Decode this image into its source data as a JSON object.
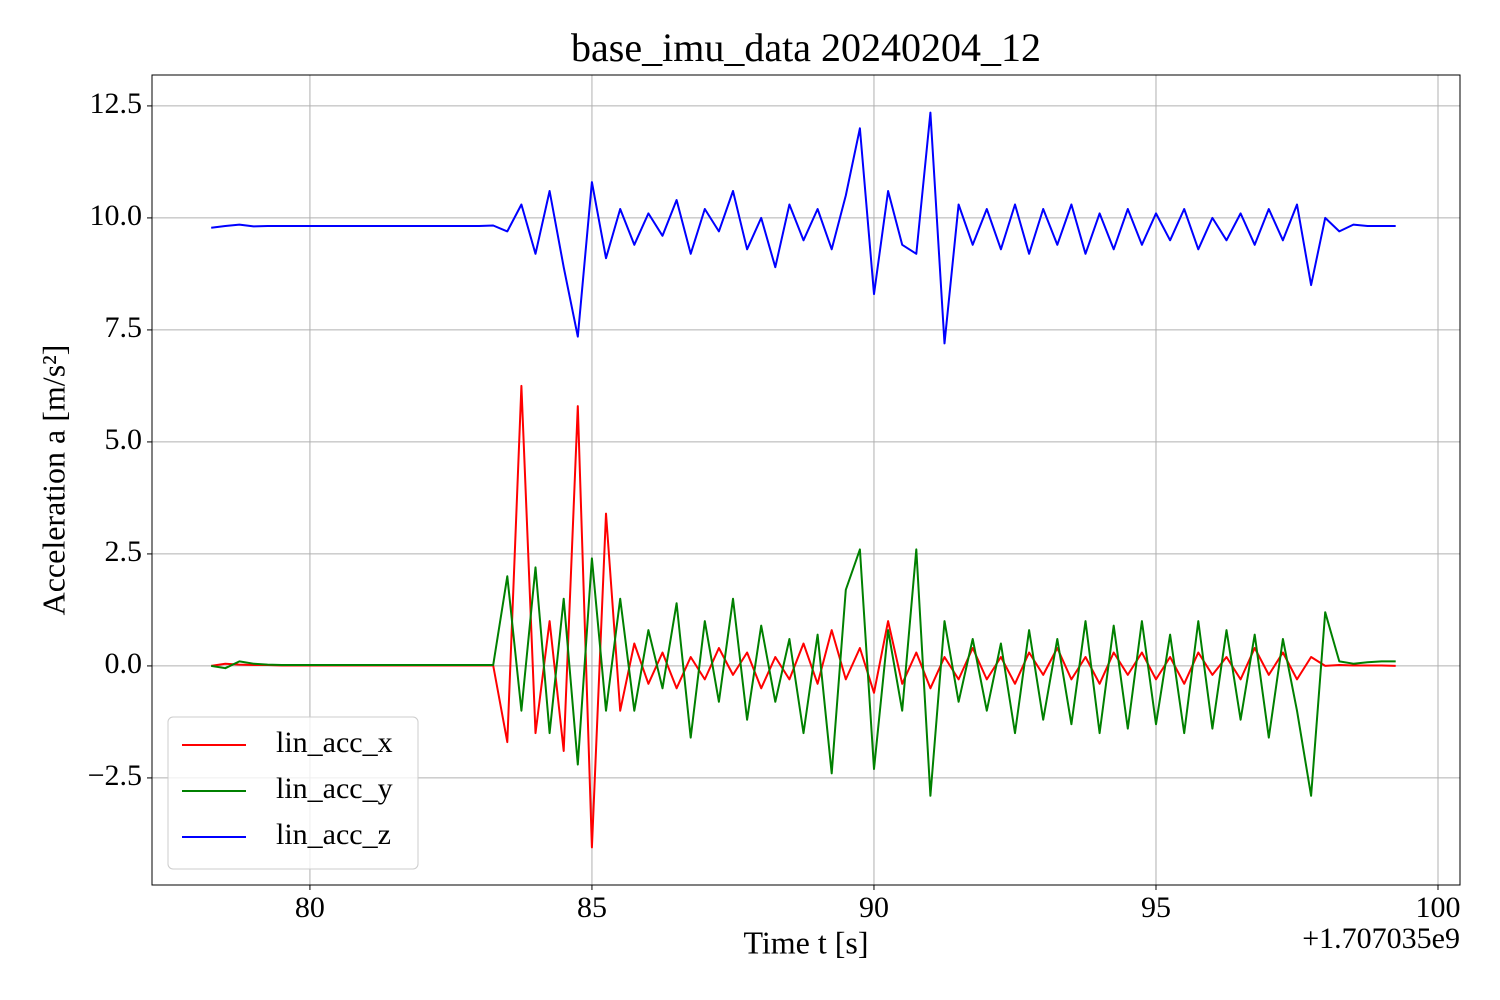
{
  "chart_data": {
    "type": "line",
    "title": "base_imu_data 20240204_12",
    "xlabel": "Time t [s]",
    "ylabel": "Acceleration a [m/s²]",
    "x_offset_label": "+1.707035e9",
    "legend": "lower left",
    "grid": true,
    "xlim": [
      77.2,
      100.39
    ],
    "ylim": [
      -4.89,
      13.19
    ],
    "xticks": [
      80,
      85,
      90,
      95,
      100
    ],
    "yticks": [
      {
        "value": -2.5,
        "label": "−2.5"
      },
      {
        "value": 0,
        "label": "0.0"
      },
      2.5,
      {
        "value": 5,
        "label": "5.0"
      },
      7.5,
      {
        "value": 10,
        "label": "10.0"
      },
      12.5
    ],
    "x": [
      78.25,
      78.5,
      78.75,
      79,
      79.25,
      79.5,
      79.75,
      80,
      80.25,
      80.5,
      80.75,
      81,
      81.25,
      81.5,
      81.75,
      82,
      82.25,
      82.5,
      82.75,
      83,
      83.25,
      83.5,
      83.75,
      84,
      84.25,
      84.5,
      84.75,
      85,
      85.25,
      85.5,
      85.75,
      86,
      86.25,
      86.5,
      86.75,
      87,
      87.25,
      87.5,
      87.75,
      88,
      88.25,
      88.5,
      88.75,
      89,
      89.25,
      89.5,
      89.75,
      90,
      90.25,
      90.5,
      90.75,
      91,
      91.25,
      91.5,
      91.75,
      92,
      92.25,
      92.5,
      92.75,
      93,
      93.25,
      93.5,
      93.75,
      94,
      94.25,
      94.5,
      94.75,
      95,
      95.25,
      95.5,
      95.75,
      96,
      96.25,
      96.5,
      96.75,
      97,
      97.25,
      97.5,
      97.75,
      98,
      98.25,
      98.5,
      98.75,
      99,
      99.25
    ],
    "series": [
      {
        "name": "lin_acc_x",
        "color": "#ff0000",
        "values": [
          0,
          0.05,
          0.03,
          0.02,
          0.02,
          0.01,
          0.01,
          0.01,
          0.01,
          0.01,
          0.01,
          0.01,
          0.01,
          0.01,
          0.01,
          0.01,
          0.01,
          0.01,
          0.01,
          0.01,
          0.01,
          -1.7,
          6.25,
          -1.5,
          1.0,
          -1.9,
          5.8,
          -4.05,
          3.4,
          -1.0,
          0.5,
          -0.4,
          0.3,
          -0.5,
          0.2,
          -0.3,
          0.4,
          -0.2,
          0.3,
          -0.5,
          0.2,
          -0.3,
          0.5,
          -0.4,
          0.8,
          -0.3,
          0.4,
          -0.6,
          1.0,
          -0.4,
          0.3,
          -0.5,
          0.2,
          -0.3,
          0.4,
          -0.3,
          0.2,
          -0.4,
          0.3,
          -0.2,
          0.4,
          -0.3,
          0.2,
          -0.4,
          0.3,
          -0.2,
          0.3,
          -0.3,
          0.2,
          -0.4,
          0.3,
          -0.2,
          0.2,
          -0.3,
          0.4,
          -0.2,
          0.3,
          -0.3,
          0.2,
          0.0,
          0.02,
          0.01,
          0.01,
          0.01,
          0.0
        ]
      },
      {
        "name": "lin_acc_y",
        "color": "#008000",
        "values": [
          0,
          -0.05,
          0.1,
          0.05,
          0.03,
          0.02,
          0.02,
          0.02,
          0.02,
          0.02,
          0.02,
          0.02,
          0.02,
          0.02,
          0.02,
          0.02,
          0.02,
          0.02,
          0.02,
          0.02,
          0.02,
          2.0,
          -1.0,
          2.2,
          -1.5,
          1.5,
          -2.2,
          2.4,
          -1.0,
          1.5,
          -1.0,
          0.8,
          -0.5,
          1.4,
          -1.6,
          1.0,
          -0.8,
          1.5,
          -1.2,
          0.9,
          -0.8,
          0.6,
          -1.5,
          0.7,
          -2.4,
          1.7,
          2.6,
          -2.3,
          0.8,
          -1.0,
          2.6,
          -2.9,
          1.0,
          -0.8,
          0.6,
          -1.0,
          0.5,
          -1.5,
          0.8,
          -1.2,
          0.6,
          -1.3,
          1.0,
          -1.5,
          0.9,
          -1.4,
          1.0,
          -1.3,
          0.7,
          -1.5,
          1.0,
          -1.4,
          0.8,
          -1.2,
          0.7,
          -1.6,
          0.6,
          -1.0,
          -2.9,
          1.2,
          0.1,
          0.05,
          0.08,
          0.1,
          0.1
        ]
      },
      {
        "name": "lin_acc_z",
        "color": "#0000ff",
        "values": [
          9.78,
          9.82,
          9.85,
          9.81,
          9.82,
          9.82,
          9.82,
          9.82,
          9.82,
          9.82,
          9.82,
          9.82,
          9.82,
          9.82,
          9.82,
          9.82,
          9.82,
          9.82,
          9.82,
          9.82,
          9.83,
          9.7,
          10.3,
          9.2,
          10.6,
          8.9,
          7.35,
          10.8,
          9.1,
          10.2,
          9.4,
          10.1,
          9.6,
          10.4,
          9.2,
          10.2,
          9.7,
          10.6,
          9.3,
          10.0,
          8.9,
          10.3,
          9.5,
          10.2,
          9.3,
          10.5,
          12.0,
          8.3,
          10.6,
          9.4,
          9.2,
          12.35,
          7.2,
          10.3,
          9.4,
          10.2,
          9.3,
          10.3,
          9.2,
          10.2,
          9.4,
          10.3,
          9.2,
          10.1,
          9.3,
          10.2,
          9.4,
          10.1,
          9.5,
          10.2,
          9.3,
          10.0,
          9.5,
          10.1,
          9.4,
          10.2,
          9.5,
          10.3,
          8.5,
          10.0,
          9.7,
          9.85,
          9.82,
          9.82,
          9.82
        ]
      }
    ]
  }
}
